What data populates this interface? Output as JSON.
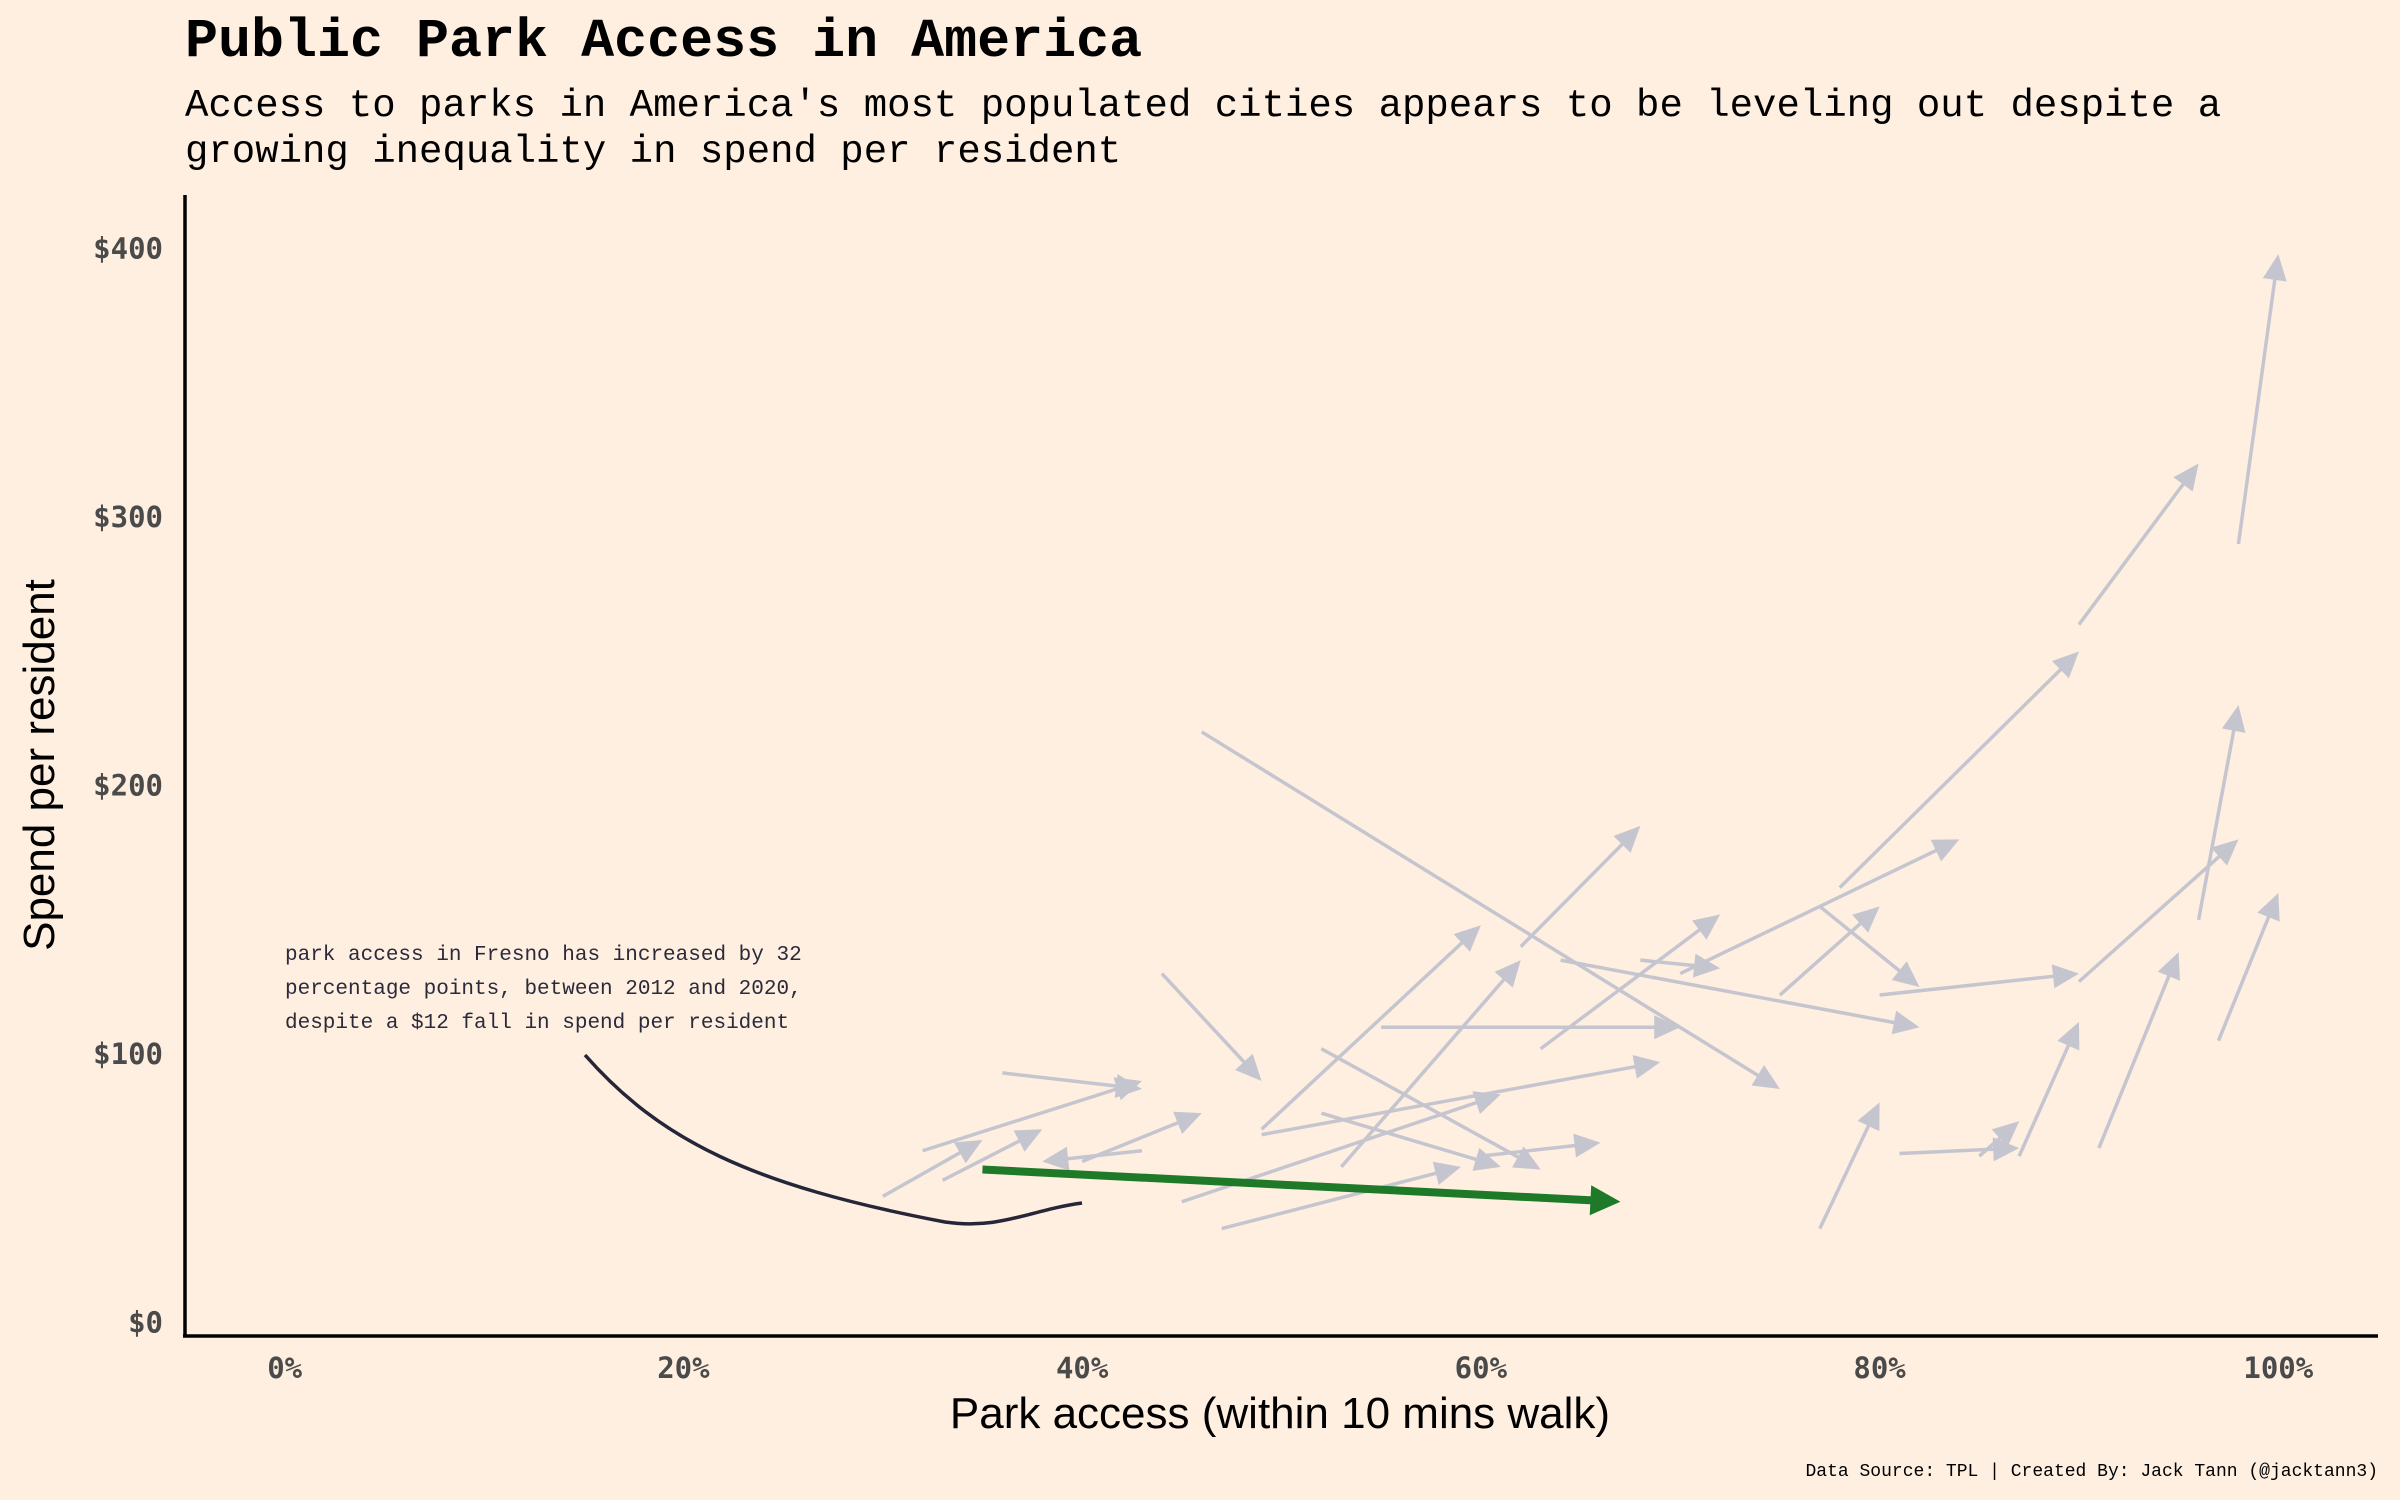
{
  "header": {
    "title": "Public Park Access in America",
    "subtitle": "Access to parks in America's most populated cities appears to be leveling out despite a growing inequality in spend per resident"
  },
  "footer": {
    "caption": "Data Source: TPL | Created By: Jack Tann (@jacktann3)"
  },
  "colors": {
    "background": "#FEEFE0",
    "arrow": "#C5C5D0",
    "highlight": "#1E7A28",
    "annotation": "#26263A",
    "axis": "#000000"
  },
  "chart_data": {
    "type": "arrow-scatter",
    "xlabel": "Park access (within 10 mins walk)",
    "ylabel": "Spend per resident",
    "xlim": [
      -0.05,
      1.05
    ],
    "ylim": [
      -5,
      420
    ],
    "x_ticks": [
      {
        "value": 0,
        "label": "0%"
      },
      {
        "value": 0.2,
        "label": "20%"
      },
      {
        "value": 0.4,
        "label": "40%"
      },
      {
        "value": 0.6,
        "label": "60%"
      },
      {
        "value": 0.8,
        "label": "80%"
      },
      {
        "value": 1.0,
        "label": "100%"
      }
    ],
    "y_ticks": [
      {
        "value": 0,
        "label": "$0"
      },
      {
        "value": 100,
        "label": "$100"
      },
      {
        "value": 200,
        "label": "$200"
      },
      {
        "value": 300,
        "label": "$300"
      },
      {
        "value": 400,
        "label": "$400"
      }
    ],
    "grid": false,
    "arrows": [
      {
        "x0": 0.98,
        "y0": 290,
        "x1": 1.0,
        "y1": 398
      },
      {
        "x0": 0.9,
        "y0": 260,
        "x1": 0.96,
        "y1": 320
      },
      {
        "x0": 0.78,
        "y0": 162,
        "x1": 0.9,
        "y1": 250
      },
      {
        "x0": 0.96,
        "y0": 150,
        "x1": 0.98,
        "y1": 230
      },
      {
        "x0": 0.97,
        "y0": 105,
        "x1": 1.0,
        "y1": 160
      },
      {
        "x0": 0.91,
        "y0": 65,
        "x1": 0.95,
        "y1": 138
      },
      {
        "x0": 0.87,
        "y0": 62,
        "x1": 0.9,
        "y1": 112
      },
      {
        "x0": 0.9,
        "y0": 127,
        "x1": 0.98,
        "y1": 180
      },
      {
        "x0": 0.8,
        "y0": 122,
        "x1": 0.9,
        "y1": 130
      },
      {
        "x0": 0.77,
        "y0": 155,
        "x1": 0.82,
        "y1": 125
      },
      {
        "x0": 0.75,
        "y0": 122,
        "x1": 0.8,
        "y1": 155
      },
      {
        "x0": 0.7,
        "y0": 130,
        "x1": 0.84,
        "y1": 180
      },
      {
        "x0": 0.64,
        "y0": 135,
        "x1": 0.82,
        "y1": 110
      },
      {
        "x0": 0.46,
        "y0": 220,
        "x1": 0.75,
        "y1": 87
      },
      {
        "x0": 0.63,
        "y0": 102,
        "x1": 0.72,
        "y1": 152
      },
      {
        "x0": 0.62,
        "y0": 140,
        "x1": 0.68,
        "y1": 185
      },
      {
        "x0": 0.55,
        "y0": 110,
        "x1": 0.7,
        "y1": 110
      },
      {
        "x0": 0.68,
        "y0": 135,
        "x1": 0.72,
        "y1": 132
      },
      {
        "x0": 0.49,
        "y0": 72,
        "x1": 0.6,
        "y1": 148
      },
      {
        "x0": 0.53,
        "y0": 58,
        "x1": 0.62,
        "y1": 135
      },
      {
        "x0": 0.44,
        "y0": 130,
        "x1": 0.49,
        "y1": 90
      },
      {
        "x0": 0.52,
        "y0": 102,
        "x1": 0.63,
        "y1": 57
      },
      {
        "x0": 0.52,
        "y0": 78,
        "x1": 0.61,
        "y1": 58
      },
      {
        "x0": 0.49,
        "y0": 70,
        "x1": 0.69,
        "y1": 97
      },
      {
        "x0": 0.6,
        "y0": 62,
        "x1": 0.66,
        "y1": 67
      },
      {
        "x0": 0.45,
        "y0": 45,
        "x1": 0.61,
        "y1": 85
      },
      {
        "x0": 0.47,
        "y0": 35,
        "x1": 0.59,
        "y1": 58
      },
      {
        "x0": 0.36,
        "y0": 93,
        "x1": 0.43,
        "y1": 87
      },
      {
        "x0": 0.32,
        "y0": 64,
        "x1": 0.43,
        "y1": 90
      },
      {
        "x0": 0.33,
        "y0": 53,
        "x1": 0.38,
        "y1": 72
      },
      {
        "x0": 0.3,
        "y0": 47,
        "x1": 0.35,
        "y1": 68
      },
      {
        "x0": 0.43,
        "y0": 64,
        "x1": 0.38,
        "y1": 60
      },
      {
        "x0": 0.4,
        "y0": 60,
        "x1": 0.46,
        "y1": 78
      },
      {
        "x0": 0.77,
        "y0": 35,
        "x1": 0.8,
        "y1": 82
      },
      {
        "x0": 0.81,
        "y0": 63,
        "x1": 0.87,
        "y1": 65
      },
      {
        "x0": 0.85,
        "y0": 62,
        "x1": 0.87,
        "y1": 75
      }
    ],
    "highlight_arrow": {
      "x0": 0.35,
      "y0": 57,
      "x1": 0.67,
      "y1": 45
    },
    "annotation": {
      "lines": [
        "park access in Fresno has increased by 32",
        "percentage points, between 2012 and 2020,",
        "despite a $12 fall in spend per resident"
      ]
    }
  }
}
